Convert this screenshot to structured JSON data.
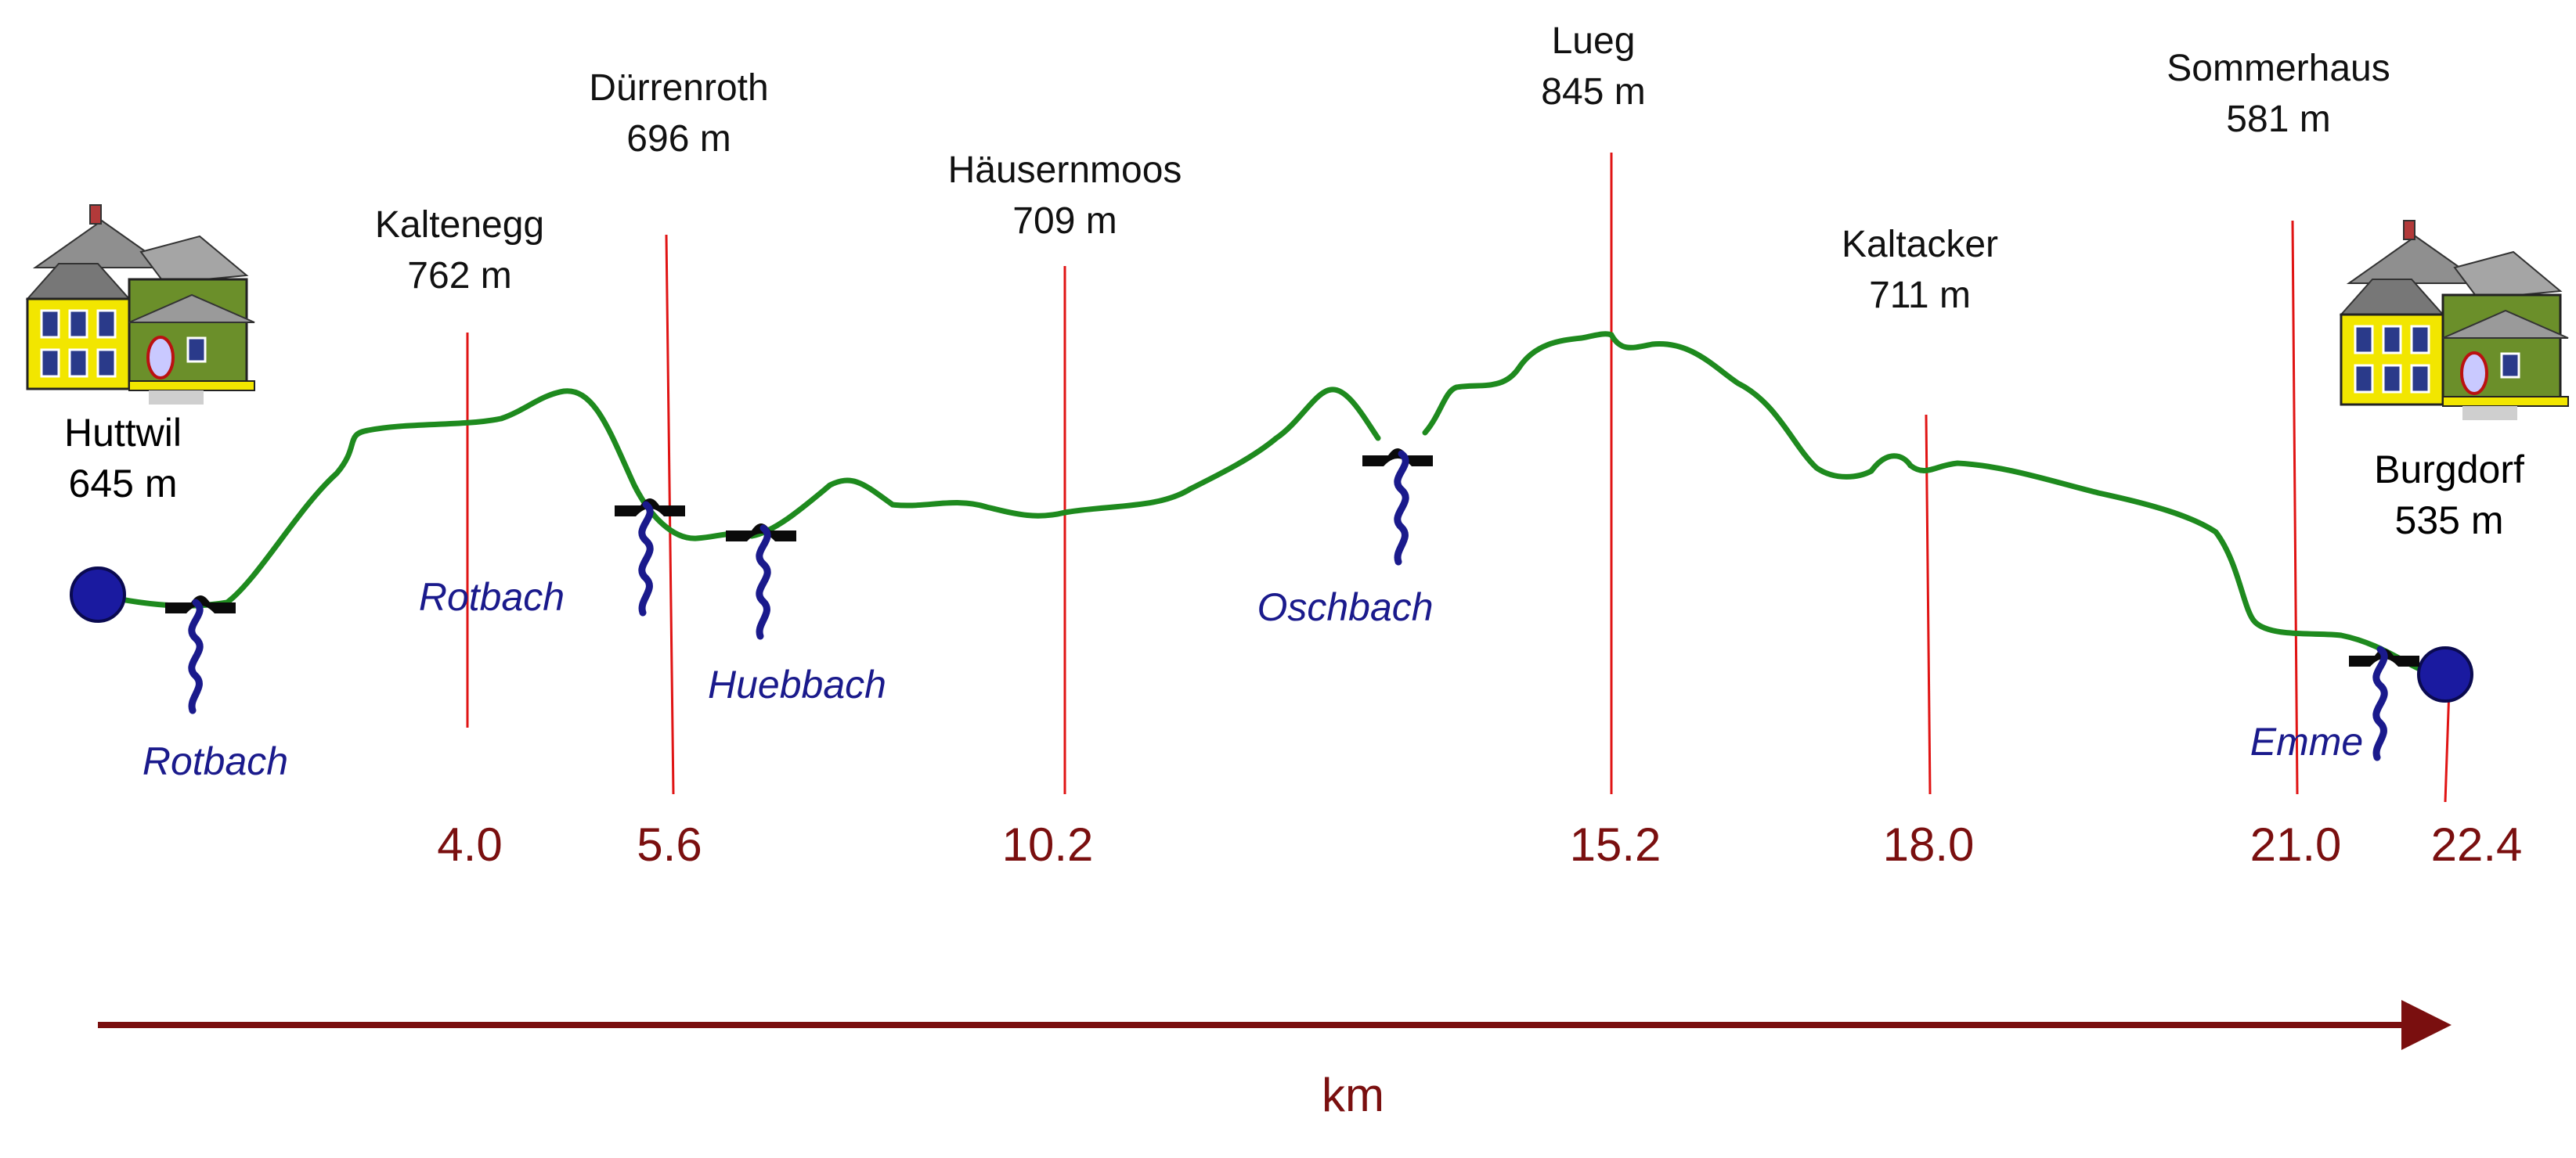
{
  "start": {
    "name": "Huttwil",
    "altitude": "645 m"
  },
  "end": {
    "name": "Burgdorf",
    "altitude": "535 m"
  },
  "markers": [
    {
      "name": "Kaltenegg",
      "altitude": "762 m",
      "km": "4.0"
    },
    {
      "name": "Dürrenroth",
      "altitude": "696 m",
      "km": "5.6"
    },
    {
      "name": "Häusernmoos",
      "altitude": "709 m",
      "km": "10.2"
    },
    {
      "name": "Lueg",
      "altitude": "845 m",
      "km": "15.2"
    },
    {
      "name": "Kaltacker",
      "altitude": "711 m",
      "km": "18.0"
    },
    {
      "name": "Sommerhaus",
      "altitude": "581 m",
      "km": "21.0"
    }
  ],
  "end_km": "22.4",
  "streams": [
    "Rotbach",
    "Rotbach",
    "Huebbach",
    "Oschbach",
    "Emme"
  ],
  "axis": {
    "label": "km"
  },
  "colors": {
    "profile": "#1e8a1e",
    "marker_line": "#e01414",
    "axis": "#7a0f0f",
    "stream": "#1a1a8c",
    "endpoint": "#1a1aa0"
  },
  "icons": [
    "house-icon",
    "bridge-icon",
    "stream-icon",
    "endpoint-dot-icon"
  ]
}
